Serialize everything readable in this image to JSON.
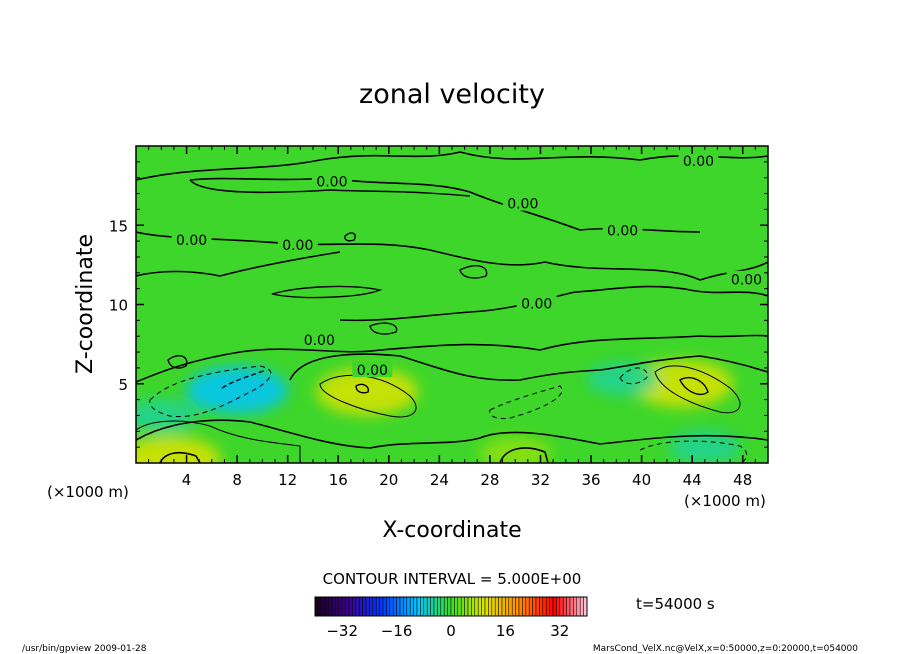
{
  "chart_data": {
    "type": "heatmap",
    "title": "zonal velocity",
    "xlabel": "X-coordinate",
    "ylabel": "Z-coordinate",
    "x_unit_left": "(×1000 m)",
    "x_unit_right": "(×1000 m)",
    "xlim": [
      0,
      50
    ],
    "ylim": [
      0,
      20
    ],
    "x_ticks": [
      4,
      8,
      12,
      16,
      20,
      24,
      28,
      32,
      36,
      40,
      44,
      48
    ],
    "y_ticks": [
      5,
      10,
      15
    ],
    "contour_interval_text": "CONTOUR INTERVAL = 5.000E+00",
    "time_text": "t=54000 s",
    "colorbar": {
      "min": -40,
      "max": 40,
      "ticks": [
        -32,
        -16,
        0,
        16,
        32
      ]
    },
    "contour_labels": [
      {
        "text": "0.00",
        "x": 14.5,
        "z": 7.7
      },
      {
        "text": "0.00",
        "x": 18.7,
        "z": 5.8
      },
      {
        "text": "0.00",
        "x": 4.4,
        "z": 14.0
      },
      {
        "text": "0.00",
        "x": 12.8,
        "z": 13.7
      },
      {
        "text": "0.00",
        "x": 15.5,
        "z": 17.7
      },
      {
        "text": "0.00",
        "x": 30.6,
        "z": 16.3
      },
      {
        "text": "0.00",
        "x": 38.5,
        "z": 14.6
      },
      {
        "text": "0.00",
        "x": 31.7,
        "z": 10.0
      },
      {
        "text": "0.00",
        "x": 44.5,
        "z": 19.0
      },
      {
        "text": "0.00",
        "x": 48.3,
        "z": 11.5
      }
    ],
    "features": [
      {
        "kind": "max",
        "x": 18.3,
        "z": 4.5,
        "value": 10
      },
      {
        "kind": "max",
        "x": 43.2,
        "z": 5.0,
        "value": 10
      },
      {
        "kind": "max",
        "x": 2.7,
        "z": 0.2,
        "value": 10
      },
      {
        "kind": "max",
        "x": 30.0,
        "z": 0.6,
        "value": 5
      },
      {
        "kind": "min",
        "x": 8.0,
        "z": 4.6,
        "value": -10
      },
      {
        "kind": "min",
        "x": 2.0,
        "z": 3.0,
        "value": -5
      },
      {
        "kind": "min",
        "x": 38.5,
        "z": 5.3,
        "value": -5
      },
      {
        "kind": "min",
        "x": 45.0,
        "z": 1.0,
        "value": -5
      }
    ]
  },
  "footer": {
    "left": "/usr/bin/gpview   2009-01-28",
    "right": "MarsCond_VelX.nc@VelX,x=0:50000,z=0:20000,t=054000"
  }
}
